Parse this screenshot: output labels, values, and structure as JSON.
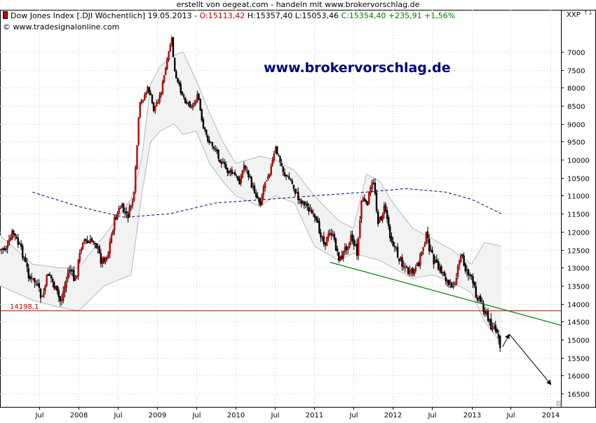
{
  "header": {
    "credit": "erstellt von oegeat.com - handeln mit www.brokervorschlag.de",
    "series_title": "Dow Jones Index [.DJI  Wöchentlich] 19.05.2013 - ",
    "open": "O:15113,42",
    "high_low": " H:15357,40 L:15053,46 ",
    "close": "C:15354,40 +235,91 +1,56%",
    "copyright": "© www.tradesignalonline.com",
    "watermark": "www.brokervorschlag.de",
    "axis_title": "XXP",
    "scale_toggle": "↑↓"
  },
  "colors": {
    "up_candle": "#c00000",
    "down_candle": "#000000",
    "band_line": "#b8b8b8",
    "band_fill": "#f2f2f2",
    "moving_average": "#000080",
    "support_line": "#cc0000",
    "trendline": "#008000",
    "grid": "#c8c8c8"
  },
  "chart_data": {
    "type": "candlestick",
    "series_name": "Dow Jones Index [.DJI  Wöchentlich]",
    "y_axis": {
      "inverted": true,
      "range": [
        6500,
        16700
      ],
      "ticks": [
        7000,
        7500,
        8000,
        8500,
        9000,
        9500,
        10000,
        10500,
        11000,
        11500,
        12000,
        12500,
        13000,
        13500,
        14000,
        14500,
        15000,
        15500,
        16000,
        16500
      ]
    },
    "x_axis": {
      "range": [
        "2007-01-01",
        "2014-02-20"
      ],
      "ticks": [
        {
          "date": "2007-07-01",
          "label": "Jul"
        },
        {
          "date": "2008-01-01",
          "label": "2008"
        },
        {
          "date": "2008-07-01",
          "label": "Jul"
        },
        {
          "date": "2009-01-01",
          "label": "2009"
        },
        {
          "date": "2009-07-01",
          "label": "Jul"
        },
        {
          "date": "2010-01-01",
          "label": "2010"
        },
        {
          "date": "2010-07-01",
          "label": "Jul"
        },
        {
          "date": "2011-01-01",
          "label": "2011"
        },
        {
          "date": "2011-07-01",
          "label": "Jul"
        },
        {
          "date": "2012-01-01",
          "label": "2012"
        },
        {
          "date": "2012-07-01",
          "label": "Jul"
        },
        {
          "date": "2013-01-01",
          "label": "2013"
        },
        {
          "date": "2013-07-01",
          "label": "Jul"
        },
        {
          "date": "2014-01-01",
          "label": "2014"
        }
      ]
    },
    "grid": true,
    "price_path": [
      [
        "2007-01-01",
        12500
      ],
      [
        "2007-02-05",
        12450
      ],
      [
        "2007-03-01",
        12000
      ],
      [
        "2007-04-15",
        12600
      ],
      [
        "2007-05-20",
        13300
      ],
      [
        "2007-06-15",
        13400
      ],
      [
        "2007-07-15",
        13900
      ],
      [
        "2007-08-15",
        13100
      ],
      [
        "2007-09-15",
        13600
      ],
      [
        "2007-10-10",
        13950
      ],
      [
        "2007-11-20",
        13000
      ],
      [
        "2007-12-15",
        13400
      ],
      [
        "2008-01-20",
        12200
      ],
      [
        "2008-02-15",
        12350
      ],
      [
        "2008-03-15",
        12200
      ],
      [
        "2008-04-15",
        12800
      ],
      [
        "2008-05-15",
        12650
      ],
      [
        "2008-06-15",
        11700
      ],
      [
        "2008-07-15",
        11300
      ],
      [
        "2008-08-15",
        11600
      ],
      [
        "2008-09-15",
        11000
      ],
      [
        "2008-10-10",
        8500
      ],
      [
        "2008-11-20",
        8000
      ],
      [
        "2008-12-15",
        8600
      ],
      [
        "2009-01-15",
        8200
      ],
      [
        "2009-02-15",
        7300
      ],
      [
        "2009-03-08",
        6600
      ],
      [
        "2009-03-25",
        7700
      ],
      [
        "2009-04-15",
        8000
      ],
      [
        "2009-05-15",
        8400
      ],
      [
        "2009-06-15",
        8500
      ],
      [
        "2009-07-10",
        8200
      ],
      [
        "2009-07-30",
        9100
      ],
      [
        "2009-08-30",
        9500
      ],
      [
        "2009-09-30",
        9700
      ],
      [
        "2009-10-20",
        10000
      ],
      [
        "2009-11-20",
        10300
      ],
      [
        "2009-12-20",
        10400
      ],
      [
        "2010-01-20",
        10600
      ],
      [
        "2010-02-10",
        10100
      ],
      [
        "2010-03-15",
        10700
      ],
      [
        "2010-04-25",
        11200
      ],
      [
        "2010-05-15",
        10600
      ],
      [
        "2010-06-15",
        10200
      ],
      [
        "2010-07-05",
        9700
      ],
      [
        "2010-08-15",
        10400
      ],
      [
        "2010-09-15",
        10600
      ],
      [
        "2010-10-20",
        11100
      ],
      [
        "2010-11-20",
        11200
      ],
      [
        "2010-12-20",
        11500
      ],
      [
        "2011-01-20",
        11900
      ],
      [
        "2011-02-20",
        12300
      ],
      [
        "2011-03-20",
        12000
      ],
      [
        "2011-04-30",
        12800
      ],
      [
        "2011-05-30",
        12400
      ],
      [
        "2011-06-20",
        12100
      ],
      [
        "2011-07-20",
        12600
      ],
      [
        "2011-08-10",
        11000
      ],
      [
        "2011-08-30",
        11300
      ],
      [
        "2011-09-25",
        10700
      ],
      [
        "2011-10-05",
        10600
      ],
      [
        "2011-10-25",
        11800
      ],
      [
        "2011-11-25",
        11300
      ],
      [
        "2011-12-20",
        12100
      ],
      [
        "2012-01-25",
        12700
      ],
      [
        "2012-02-25",
        12950
      ],
      [
        "2012-03-20",
        13200
      ],
      [
        "2012-04-20",
        13050
      ],
      [
        "2012-05-20",
        12400
      ],
      [
        "2012-06-05",
        12100
      ],
      [
        "2012-06-25",
        12600
      ],
      [
        "2012-07-25",
        13000
      ],
      [
        "2012-08-25",
        13150
      ],
      [
        "2012-09-20",
        13550
      ],
      [
        "2012-10-20",
        13300
      ],
      [
        "2012-11-15",
        12600
      ],
      [
        "2012-11-30",
        13000
      ],
      [
        "2012-12-20",
        13150
      ],
      [
        "2013-01-20",
        13700
      ],
      [
        "2013-02-20",
        14000
      ],
      [
        "2013-03-20",
        14500
      ],
      [
        "2013-04-20",
        14700
      ],
      [
        "2013-05-19",
        15354
      ]
    ],
    "bollinger_upper": [
      [
        "2007-01-01",
        12100
      ],
      [
        "2007-06-01",
        12900
      ],
      [
        "2007-10-01",
        13000
      ],
      [
        "2008-01-01",
        13000
      ],
      [
        "2008-05-01",
        12100
      ],
      [
        "2008-09-01",
        11100
      ],
      [
        "2008-10-20",
        10000
      ],
      [
        "2008-12-01",
        7900
      ],
      [
        "2009-01-15",
        7400
      ],
      [
        "2009-03-20",
        7100
      ],
      [
        "2009-05-01",
        7000
      ],
      [
        "2009-07-01",
        7800
      ],
      [
        "2009-09-01",
        8700
      ],
      [
        "2009-11-01",
        9500
      ],
      [
        "2010-01-01",
        10100
      ],
      [
        "2010-04-25",
        9900
      ],
      [
        "2010-07-01",
        10000
      ],
      [
        "2010-10-01",
        10300
      ],
      [
        "2011-01-01",
        11000
      ],
      [
        "2011-04-25",
        11700
      ],
      [
        "2011-07-01",
        11900
      ],
      [
        "2011-09-01",
        10400
      ],
      [
        "2011-11-01",
        10600
      ],
      [
        "2012-01-01",
        11200
      ],
      [
        "2012-04-01",
        11900
      ],
      [
        "2012-07-01",
        12200
      ],
      [
        "2012-10-01",
        12500
      ],
      [
        "2013-01-01",
        12900
      ],
      [
        "2013-03-01",
        12300
      ],
      [
        "2013-05-19",
        12400
      ]
    ],
    "bollinger_lower": [
      [
        "2007-01-01",
        13500
      ],
      [
        "2007-06-01",
        13900
      ],
      [
        "2007-10-01",
        14100
      ],
      [
        "2008-01-01",
        14200
      ],
      [
        "2008-05-01",
        13500
      ],
      [
        "2008-09-01",
        13200
      ],
      [
        "2008-10-20",
        11000
      ],
      [
        "2008-12-01",
        9500
      ],
      [
        "2009-01-15",
        9200
      ],
      [
        "2009-03-20",
        9000
      ],
      [
        "2009-05-01",
        9300
      ],
      [
        "2009-07-01",
        9200
      ],
      [
        "2009-09-01",
        10100
      ],
      [
        "2009-11-01",
        10600
      ],
      [
        "2010-01-01",
        11000
      ],
      [
        "2010-04-25",
        11300
      ],
      [
        "2010-07-01",
        11000
      ],
      [
        "2010-10-01",
        11200
      ],
      [
        "2011-01-01",
        12400
      ],
      [
        "2011-04-25",
        12800
      ],
      [
        "2011-07-01",
        12600
      ],
      [
        "2011-09-01",
        12700
      ],
      [
        "2011-11-01",
        12800
      ],
      [
        "2012-01-01",
        13000
      ],
      [
        "2012-04-01",
        13300
      ],
      [
        "2012-07-01",
        13200
      ],
      [
        "2012-10-01",
        13400
      ],
      [
        "2013-01-01",
        13700
      ],
      [
        "2013-03-01",
        14500
      ],
      [
        "2013-05-19",
        15100
      ]
    ],
    "moving_average": [
      [
        "2007-06-01",
        10900
      ],
      [
        "2008-01-01",
        11300
      ],
      [
        "2008-08-01",
        11600
      ],
      [
        "2009-03-01",
        11500
      ],
      [
        "2009-10-01",
        11200
      ],
      [
        "2010-06-01",
        11100
      ],
      [
        "2011-01-01",
        11000
      ],
      [
        "2011-09-01",
        10900
      ],
      [
        "2012-03-01",
        10800
      ],
      [
        "2012-09-01",
        10900
      ],
      [
        "2013-01-01",
        11100
      ],
      [
        "2013-05-19",
        11500
      ]
    ],
    "support_level": {
      "value": 14198.1,
      "label": "14198,1"
    },
    "trendline": {
      "start": [
        "2011-03-15",
        12850
      ],
      "end": [
        "2014-02-20",
        14600
      ]
    },
    "arrows": [
      {
        "from": [
          "2013-05-25",
          15200
        ],
        "to": [
          "2013-06-25",
          14850
        ]
      },
      {
        "from": [
          "2013-06-25",
          14850
        ],
        "to": [
          "2014-01-05",
          16250
        ]
      }
    ]
  }
}
